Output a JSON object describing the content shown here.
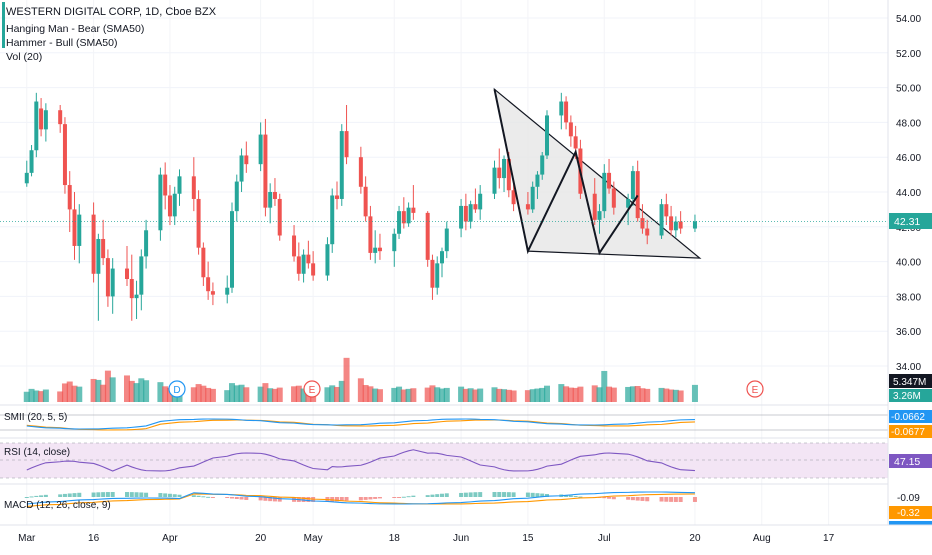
{
  "header": {
    "symbol_line": "WESTERN DIGITAL CORP, 1D, Cboe BZX",
    "study_1": "Hanging Man - Bear (SMA50)",
    "study_2": "Hammer - Bull (SMA50)",
    "study_3": "Vol (20)"
  },
  "colors": {
    "up": "#26a69a",
    "down": "#ef5350",
    "price_line": "#26a69a",
    "triangle_fill": "#e8e8e8",
    "smi_blue": "#2196f3",
    "smi_orange": "#ff9800",
    "rsi_line": "#7e57c2",
    "rsi_band": "#f3e5f5",
    "macd_blue": "#2196f3",
    "macd_orange": "#ff9800"
  },
  "price_axis": {
    "ticks": [
      "54.00",
      "52.00",
      "50.00",
      "48.00",
      "46.00",
      "44.00",
      "42.00",
      "40.00",
      "38.00",
      "36.00",
      "34.00"
    ]
  },
  "time_axis": {
    "ticks": [
      "Mar",
      "16",
      "Apr",
      "20",
      "May",
      "18",
      "Jun",
      "15",
      "Jul",
      "20",
      "Aug",
      "17"
    ]
  },
  "event_markers": {
    "dividend": "D",
    "earnings_1": "E",
    "earnings_2": "E"
  },
  "badges": {
    "last_price": "42.31",
    "volume": "5.347M",
    "volume_avg": "3.26M",
    "smi_1": "-0.0662",
    "smi_2": "-0.0677",
    "rsi": "47.15",
    "macd_1": "-0.09",
    "macd_2": "-0.32"
  },
  "panes": {
    "smi_label": "SMII (20, 5, 5)",
    "rsi_label": "RSI (14, close)",
    "macd_label": "MACD (12, 26, close, 9)"
  },
  "chart_data": {
    "type": "candlestick",
    "symbol": "WDC",
    "interval": "1D",
    "x_range": [
      "2020-03-01",
      "2020-08-24"
    ],
    "y_range": [
      32.5,
      54.8
    ],
    "candles": [
      [
        44.5,
        45.8,
        44.3,
        45.1
      ],
      [
        45.1,
        46.7,
        44.9,
        46.4
      ],
      [
        46.4,
        49.7,
        46.0,
        49.2
      ],
      [
        48.8,
        49.4,
        47.2,
        47.6
      ],
      [
        47.6,
        49.1,
        46.9,
        48.7
      ],
      [
        48.7,
        49.0,
        47.4,
        47.9
      ],
      [
        47.9,
        48.3,
        43.9,
        44.4
      ],
      [
        44.4,
        45.2,
        41.7,
        43.0
      ],
      [
        43.0,
        44.0,
        40.1,
        40.9
      ],
      [
        40.9,
        43.3,
        39.9,
        42.7
      ],
      [
        42.7,
        43.4,
        38.8,
        39.3
      ],
      [
        39.3,
        41.6,
        36.6,
        41.3
      ],
      [
        41.3,
        42.4,
        39.8,
        40.2
      ],
      [
        40.2,
        40.7,
        37.4,
        38.0
      ],
      [
        38.0,
        40.2,
        37.0,
        39.6
      ],
      [
        39.6,
        40.9,
        38.6,
        39.0
      ],
      [
        39.0,
        40.4,
        36.6,
        37.9
      ],
      [
        37.9,
        38.9,
        36.7,
        38.1
      ],
      [
        38.1,
        40.7,
        37.2,
        40.3
      ],
      [
        40.3,
        42.4,
        39.6,
        41.8
      ],
      [
        41.8,
        45.4,
        41.2,
        45.0
      ],
      [
        45.0,
        45.7,
        43.0,
        43.8
      ],
      [
        43.8,
        44.4,
        42.1,
        42.6
      ],
      [
        42.6,
        44.3,
        42.1,
        43.9
      ],
      [
        43.9,
        45.3,
        43.2,
        44.9
      ],
      [
        44.9,
        46.0,
        42.9,
        43.6
      ],
      [
        43.6,
        44.1,
        40.4,
        40.8
      ],
      [
        40.8,
        41.1,
        38.6,
        39.1
      ],
      [
        39.1,
        40.0,
        37.8,
        38.3
      ],
      [
        38.3,
        38.8,
        37.5,
        38.1
      ],
      [
        38.1,
        39.2,
        37.6,
        38.5
      ],
      [
        38.5,
        43.4,
        38.2,
        42.9
      ],
      [
        42.9,
        45.0,
        42.3,
        44.6
      ],
      [
        44.6,
        46.5,
        44.0,
        46.1
      ],
      [
        46.1,
        46.9,
        45.1,
        45.6
      ],
      [
        45.6,
        48.0,
        45.2,
        47.3
      ],
      [
        47.3,
        48.2,
        42.6,
        43.1
      ],
      [
        43.1,
        44.5,
        42.2,
        44.0
      ],
      [
        44.0,
        44.8,
        43.2,
        43.6
      ],
      [
        43.6,
        43.9,
        41.2,
        41.5
      ],
      [
        41.5,
        42.1,
        40.0,
        40.3
      ],
      [
        40.3,
        41.1,
        38.9,
        39.3
      ],
      [
        39.3,
        40.7,
        38.8,
        40.4
      ],
      [
        40.4,
        41.2,
        39.6,
        39.9
      ],
      [
        39.9,
        40.6,
        38.9,
        39.2
      ],
      [
        39.2,
        41.4,
        38.9,
        41.0
      ],
      [
        41.0,
        44.2,
        40.5,
        43.8
      ],
      [
        43.8,
        44.6,
        43.0,
        43.6
      ],
      [
        43.6,
        47.9,
        43.2,
        47.5
      ],
      [
        47.5,
        49.0,
        45.6,
        46.0
      ],
      [
        46.0,
        46.6,
        43.9,
        44.3
      ],
      [
        44.3,
        44.9,
        42.3,
        42.6
      ],
      [
        42.6,
        43.2,
        40.1,
        40.5
      ],
      [
        40.5,
        41.8,
        39.9,
        40.8
      ],
      [
        40.8,
        41.6,
        40.1,
        40.6
      ],
      [
        40.6,
        41.9,
        39.7,
        41.6
      ],
      [
        41.6,
        43.2,
        41.3,
        42.9
      ],
      [
        42.9,
        43.7,
        41.9,
        42.2
      ],
      [
        42.2,
        43.4,
        42.0,
        43.1
      ],
      [
        43.1,
        44.4,
        42.4,
        42.8
      ],
      [
        42.8,
        42.9,
        39.7,
        40.1
      ],
      [
        40.1,
        40.4,
        37.8,
        38.5
      ],
      [
        38.5,
        40.3,
        38.1,
        39.9
      ],
      [
        39.9,
        40.8,
        39.1,
        40.6
      ],
      [
        40.6,
        42.3,
        40.2,
        41.9
      ],
      [
        41.9,
        43.6,
        41.4,
        43.2
      ],
      [
        43.2,
        43.9,
        41.8,
        42.3
      ],
      [
        42.3,
        43.5,
        41.9,
        43.3
      ],
      [
        43.3,
        44.2,
        42.8,
        43.0
      ],
      [
        43.0,
        44.4,
        42.4,
        43.9
      ],
      [
        43.9,
        45.8,
        43.6,
        45.4
      ],
      [
        45.4,
        46.5,
        44.2,
        44.8
      ],
      [
        44.8,
        46.1,
        44.0,
        45.9
      ],
      [
        45.9,
        46.3,
        43.7,
        44.1
      ],
      [
        44.1,
        44.5,
        42.9,
        43.3
      ],
      [
        43.3,
        44.0,
        42.7,
        43.0
      ],
      [
        43.0,
        44.6,
        42.8,
        44.3
      ],
      [
        44.3,
        45.2,
        43.6,
        45.0
      ],
      [
        45.0,
        46.3,
        44.7,
        46.1
      ],
      [
        46.1,
        48.7,
        45.9,
        48.4
      ],
      [
        48.4,
        49.7,
        47.6,
        49.2
      ],
      [
        49.2,
        49.5,
        47.6,
        48.0
      ],
      [
        48.0,
        48.4,
        46.6,
        47.2
      ],
      [
        47.2,
        47.8,
        45.9,
        46.5
      ],
      [
        46.5,
        47.0,
        43.6,
        43.9
      ],
      [
        43.9,
        44.8,
        42.1,
        42.4
      ],
      [
        42.4,
        43.3,
        41.6,
        42.9
      ],
      [
        42.9,
        45.6,
        42.5,
        45.1
      ],
      [
        45.1,
        45.9,
        43.9,
        44.2
      ],
      [
        44.2,
        44.6,
        42.7,
        43.1
      ],
      [
        43.1,
        43.9,
        42.1,
        43.6
      ],
      [
        43.6,
        45.5,
        43.2,
        45.2
      ],
      [
        45.2,
        45.8,
        42.3,
        42.5
      ],
      [
        42.5,
        43.3,
        41.6,
        41.9
      ],
      [
        41.9,
        42.4,
        41.0,
        41.5
      ],
      [
        41.5,
        43.6,
        41.3,
        43.3
      ],
      [
        43.3,
        43.9,
        42.1,
        42.6
      ],
      [
        42.6,
        43.2,
        41.5,
        41.8
      ],
      [
        41.8,
        42.6,
        41.4,
        42.3
      ],
      [
        42.3,
        42.9,
        41.6,
        41.9
      ],
      [
        41.9,
        42.7,
        41.7,
        42.31
      ]
    ],
    "volumes_millions": [
      3.2,
      4.1,
      3.6,
      3.4,
      3.9,
      3.3,
      5.8,
      6.4,
      5.1,
      4.8,
      7.2,
      6.9,
      5.4,
      9.8,
      7.7,
      8.3,
      6.6,
      5.9,
      7.4,
      6.8,
      6.2,
      4.9,
      4.4,
      4.7,
      5.3,
      4.6,
      5.6,
      5.1,
      4.4,
      4.1,
      3.7,
      5.9,
      5.2,
      5.4,
      4.6,
      4.8,
      5.9,
      4.3,
      4.1,
      4.5,
      4.9,
      5.1,
      4.2,
      4.0,
      4.3,
      4.6,
      5.2,
      4.7,
      6.6,
      13.8,
      7.4,
      5.3,
      4.9,
      4.2,
      4.0,
      4.4,
      4.8,
      3.9,
      4.1,
      4.3,
      4.5,
      5.2,
      4.6,
      4.2,
      4.4,
      4.8,
      4.1,
      4.3,
      3.9,
      4.2,
      4.6,
      4.1,
      4.0,
      3.8,
      3.6,
      3.7,
      4.0,
      4.2,
      4.4,
      5.1,
      5.6,
      4.9,
      4.5,
      4.4,
      4.8,
      5.2,
      4.6,
      9.7,
      4.8,
      4.5,
      4.7,
      4.9,
      5.0,
      4.3,
      4.1,
      4.4,
      4.2,
      3.9,
      3.8,
      3.6,
      5.347
    ],
    "triangle_pattern": {
      "points": [
        {
          "date": "2020-06-08",
          "price": 49.9
        },
        {
          "date": "2020-07-21",
          "price": 40.2
        },
        {
          "date": "2020-06-15",
          "price": 40.6
        }
      ],
      "zigzag": [
        {
          "date": "2020-06-08",
          "price": 49.9
        },
        {
          "date": "2020-06-15",
          "price": 40.6
        },
        {
          "date": "2020-06-25",
          "price": 46.3
        },
        {
          "date": "2020-06-30",
          "price": 40.5
        },
        {
          "date": "2020-07-08",
          "price": 43.8
        }
      ]
    },
    "smi": {
      "smi": -0.0662,
      "signal": -0.0677
    },
    "rsi": {
      "value": 47.15,
      "band": [
        30,
        70
      ]
    },
    "macd": {
      "macd": -0.09,
      "signal": -0.32
    }
  }
}
